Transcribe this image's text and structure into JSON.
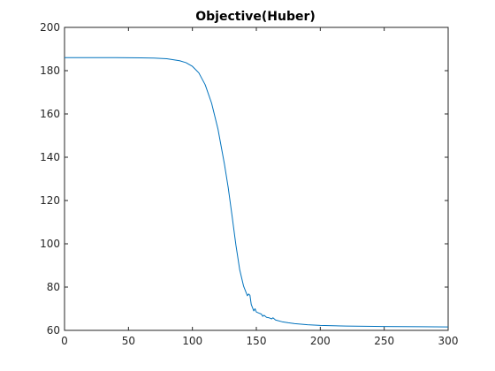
{
  "chart_data": {
    "type": "line",
    "title": "Objective(Huber)",
    "xlabel": "",
    "ylabel": "",
    "xlim": [
      0,
      300
    ],
    "ylim": [
      60,
      200
    ],
    "xticks": [
      0,
      50,
      100,
      150,
      200,
      250,
      300
    ],
    "yticks": [
      60,
      80,
      100,
      120,
      140,
      160,
      180,
      200
    ],
    "grid": false,
    "series": [
      {
        "color": "#0072bd",
        "points": [
          [
            0,
            186
          ],
          [
            20,
            186
          ],
          [
            40,
            186
          ],
          [
            60,
            185.9
          ],
          [
            70,
            185.8
          ],
          [
            80,
            185.5
          ],
          [
            90,
            184.6
          ],
          [
            95,
            183.7
          ],
          [
            100,
            182.0
          ],
          [
            105,
            179.0
          ],
          [
            110,
            173.5
          ],
          [
            115,
            165.0
          ],
          [
            120,
            153.0
          ],
          [
            125,
            137.0
          ],
          [
            128,
            126.0
          ],
          [
            131,
            113.0
          ],
          [
            134,
            99.5
          ],
          [
            137,
            88.0
          ],
          [
            140,
            80.5
          ],
          [
            142,
            77.5
          ],
          [
            143,
            76.0
          ],
          [
            144,
            76.8
          ],
          [
            145,
            76.2
          ],
          [
            146,
            72.0
          ],
          [
            147,
            70.5
          ],
          [
            148,
            69.0
          ],
          [
            149,
            70.0
          ],
          [
            150,
            68.5
          ],
          [
            152,
            68.0
          ],
          [
            154,
            67.5
          ],
          [
            155,
            66.5
          ],
          [
            156,
            67.0
          ],
          [
            158,
            66.0
          ],
          [
            160,
            65.8
          ],
          [
            162,
            65.3
          ],
          [
            163,
            65.8
          ],
          [
            165,
            64.8
          ],
          [
            170,
            64.0
          ],
          [
            175,
            63.5
          ],
          [
            180,
            63.1
          ],
          [
            190,
            62.6
          ],
          [
            200,
            62.3
          ],
          [
            220,
            62.0
          ],
          [
            250,
            61.8
          ],
          [
            280,
            61.7
          ],
          [
            300,
            61.6
          ]
        ]
      }
    ]
  }
}
